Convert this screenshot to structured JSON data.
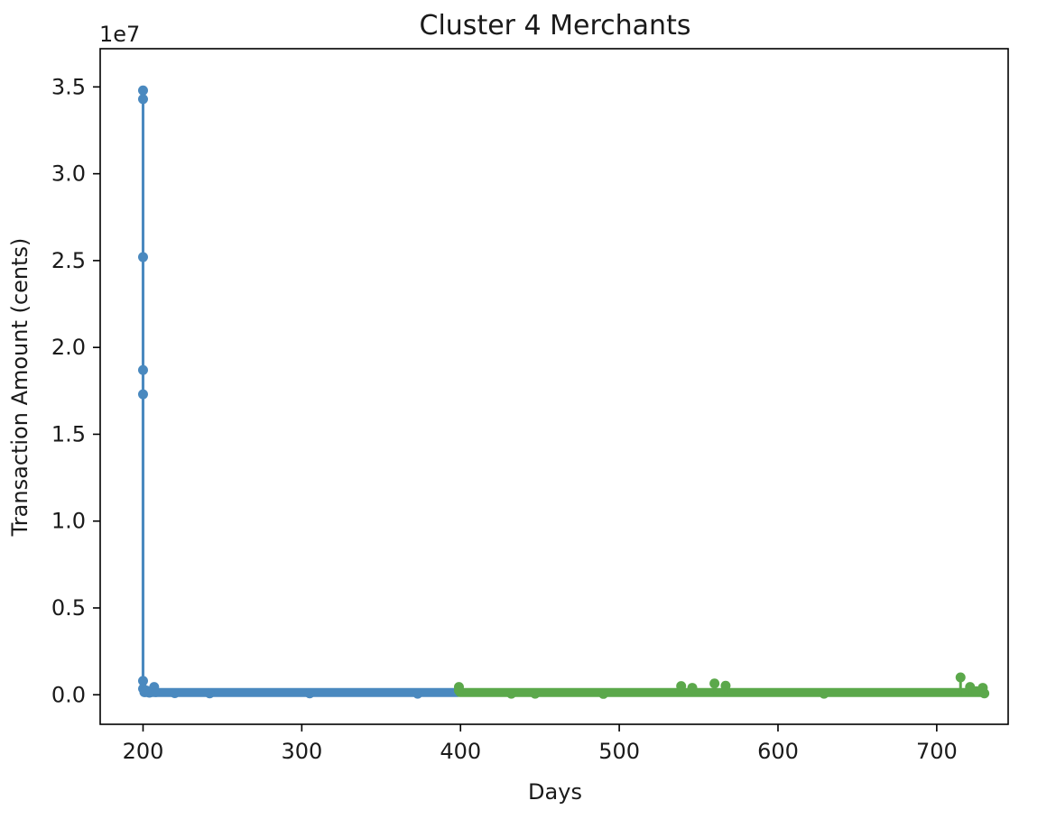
{
  "chart_data": {
    "type": "line",
    "title": "Cluster 4 Merchants",
    "xlabel": "Days",
    "ylabel": "Transaction Amount (cents)",
    "offset_text": "1e7",
    "xlim": [
      173,
      745
    ],
    "ylim": [
      -1700000,
      37200000
    ],
    "x_ticks": [
      200,
      300,
      400,
      500,
      600,
      700
    ],
    "x_tick_labels": [
      "200",
      "300",
      "400",
      "500",
      "600",
      "700"
    ],
    "y_ticks": [
      0,
      5000000,
      10000000,
      15000000,
      20000000,
      25000000,
      30000000,
      35000000
    ],
    "y_tick_labels": [
      "0.0",
      "0.5",
      "1.0",
      "1.5",
      "2.0",
      "2.5",
      "3.0",
      "3.5"
    ],
    "grid": false,
    "series": [
      {
        "color": "#4a89bf",
        "x_range": [
          200,
          399
        ],
        "baseline": 30000,
        "spikes": [
          [
            200,
            34800000
          ],
          [
            200,
            34300000
          ],
          [
            200,
            25200000
          ],
          [
            200,
            18700000
          ],
          [
            200,
            17300000
          ],
          [
            200,
            800000
          ],
          [
            200,
            350000
          ],
          [
            201,
            150000
          ],
          [
            202,
            250000
          ],
          [
            204,
            120000
          ],
          [
            207,
            450000
          ],
          [
            208,
            150000
          ],
          [
            220,
            90000
          ],
          [
            242,
            80000
          ],
          [
            305,
            80000
          ],
          [
            373,
            60000
          ]
        ]
      },
      {
        "color": "#5ba84b",
        "x_range": [
          399,
          730
        ],
        "baseline": 30000,
        "spikes": [
          [
            399,
            450000
          ],
          [
            399,
            250000
          ],
          [
            432,
            60000
          ],
          [
            447,
            60000
          ],
          [
            490,
            50000
          ],
          [
            539,
            500000
          ],
          [
            546,
            400000
          ],
          [
            560,
            650000
          ],
          [
            567,
            520000
          ],
          [
            629,
            60000
          ],
          [
            715,
            1000000
          ],
          [
            721,
            450000
          ],
          [
            725,
            200000
          ],
          [
            729,
            400000
          ],
          [
            730,
            80000
          ]
        ]
      }
    ]
  }
}
